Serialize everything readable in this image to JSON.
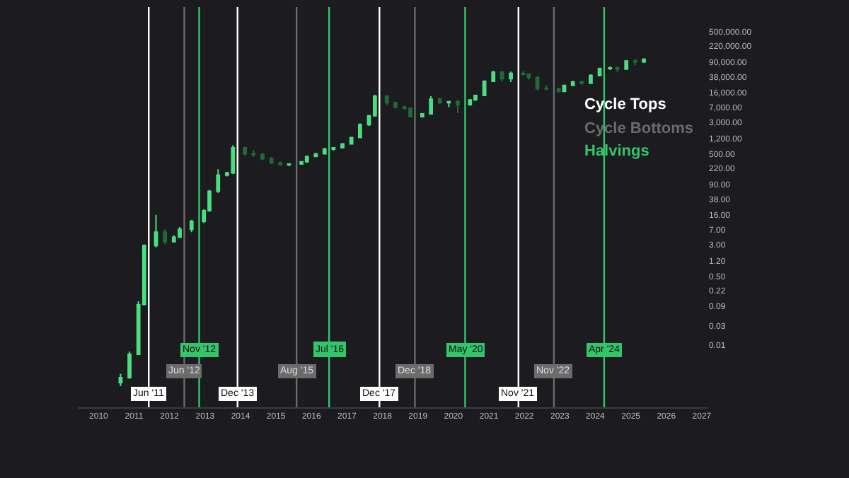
{
  "chart_data": {
    "type": "candlestick",
    "log": true,
    "grid": false,
    "x": [
      "2010-08-15",
      "2010-11-15",
      "2011-02-15",
      "2011-04-15",
      "2011-08-15",
      "2011-11-15",
      "2012-02-15",
      "2012-04-15",
      "2012-08-15",
      "2012-12-20",
      "2013-02-15",
      "2013-05-15",
      "2013-08-15",
      "2013-10-15",
      "2014-02-15",
      "2014-05-15",
      "2014-08-15",
      "2014-11-15",
      "2015-02-15",
      "2015-05-15",
      "2015-09-20",
      "2015-11-15",
      "2016-02-15",
      "2016-05-15",
      "2016-08-15",
      "2016-11-15",
      "2017-02-15",
      "2017-05-15",
      "2017-08-15",
      "2017-10-15",
      "2018-02-15",
      "2018-05-15",
      "2018-08-15",
      "2018-10-15",
      "2019-02-15",
      "2019-05-15",
      "2019-08-15",
      "2019-11-15",
      "2020-02-15",
      "2020-06-20",
      "2020-08-15",
      "2020-11-15",
      "2021-02-15",
      "2021-05-15",
      "2021-08-15",
      "2021-12-20",
      "2022-02-15",
      "2022-05-15",
      "2022-08-15",
      "2022-12-20",
      "2023-02-15",
      "2023-05-15",
      "2023-08-15",
      "2023-11-15",
      "2024-02-15",
      "2024-06-01",
      "2024-08-15",
      "2024-11-15",
      "2025-02-15",
      "2025-05-15"
    ],
    "ohlc": [
      [
        0.0012,
        0.002,
        0.001,
        0.0016
      ],
      [
        0.0016,
        0.007,
        0.0015,
        0.006
      ],
      [
        0.006,
        0.12,
        0.006,
        0.1
      ],
      [
        0.1,
        3,
        0.1,
        2.8
      ],
      [
        2.8,
        16,
        2.5,
        6
      ],
      [
        6,
        7,
        3,
        3.5
      ],
      [
        3.5,
        5,
        3.3,
        4.5
      ],
      [
        4.5,
        8,
        4.3,
        7
      ],
      [
        7,
        12,
        6,
        11
      ],
      [
        11,
        22,
        10,
        20
      ],
      [
        20,
        65,
        19,
        60
      ],
      [
        60,
        210,
        55,
        150
      ],
      [
        150,
        180,
        140,
        170
      ],
      [
        170,
        820,
        160,
        700
      ],
      [
        700,
        750,
        450,
        500
      ],
      [
        500,
        620,
        420,
        480
      ],
      [
        480,
        520,
        350,
        380
      ],
      [
        380,
        420,
        280,
        300
      ],
      [
        300,
        320,
        260,
        270
      ],
      [
        270,
        290,
        250,
        280
      ],
      [
        280,
        330,
        270,
        320
      ],
      [
        320,
        450,
        300,
        430
      ],
      [
        430,
        520,
        420,
        500
      ],
      [
        500,
        700,
        480,
        650
      ],
      [
        650,
        720,
        600,
        700
      ],
      [
        700,
        900,
        690,
        880
      ],
      [
        880,
        1300,
        850,
        1250
      ],
      [
        1250,
        2800,
        1200,
        2600
      ],
      [
        2600,
        4500,
        2400,
        4300
      ],
      [
        4300,
        14000,
        4200,
        13000
      ],
      [
        13000,
        13500,
        8000,
        9000
      ],
      [
        9000,
        9500,
        6500,
        7000
      ],
      [
        7000,
        7500,
        6000,
        6500
      ],
      [
        6500,
        6700,
        4000,
        4100
      ],
      [
        4100,
        5000,
        3900,
        4800
      ],
      [
        4800,
        13000,
        4700,
        11000
      ],
      [
        11000,
        12000,
        8500,
        9000
      ],
      [
        9000,
        10000,
        7000,
        9500
      ],
      [
        9500,
        10500,
        5000,
        8000
      ],
      [
        8000,
        11000,
        7800,
        10500
      ],
      [
        10500,
        14000,
        10000,
        13500
      ],
      [
        13500,
        32000,
        13000,
        30000
      ],
      [
        30000,
        55000,
        29000,
        50000
      ],
      [
        50000,
        54000,
        30000,
        35000
      ],
      [
        35000,
        52000,
        29000,
        47000
      ],
      [
        47000,
        53000,
        42000,
        45000
      ],
      [
        45000,
        46000,
        33000,
        38000
      ],
      [
        38000,
        40000,
        18000,
        20000
      ],
      [
        20000,
        24000,
        18500,
        19500
      ],
      [
        19500,
        21000,
        16000,
        17000
      ],
      [
        17000,
        25000,
        16500,
        24000
      ],
      [
        24000,
        31000,
        23000,
        29000
      ],
      [
        29000,
        31000,
        25000,
        27000
      ],
      [
        27000,
        45000,
        26000,
        42000
      ],
      [
        42000,
        65000,
        40000,
        62000
      ],
      [
        62000,
        70000,
        57000,
        64000
      ],
      [
        64000,
        70000,
        50000,
        60000
      ],
      [
        60000,
        100000,
        58000,
        95000
      ],
      [
        95000,
        105000,
        75000,
        90000
      ],
      [
        90000,
        110000,
        85000,
        105000
      ]
    ],
    "colors": [
      "#4ade80",
      "#4ade80",
      "#4ade80",
      "#4ade80",
      "#4ade80",
      "#1e6b35",
      "#4ade80",
      "#4ade80",
      "#4ade80",
      "#4ade80",
      "#4ade80",
      "#4ade80",
      "#4ade80",
      "#4ade80",
      "#1e6b35",
      "#1e6b35",
      "#1e6b35",
      "#1e6b35",
      "#1e6b35",
      "#4ade80",
      "#4ade80",
      "#4ade80",
      "#4ade80",
      "#4ade80",
      "#4ade80",
      "#4ade80",
      "#4ade80",
      "#4ade80",
      "#4ade80",
      "#4ade80",
      "#1e6b35",
      "#1e6b35",
      "#1e6b35",
      "#1e6b35",
      "#4ade80",
      "#4ade80",
      "#1e6b35",
      "#4ade80",
      "#1e6b35",
      "#4ade80",
      "#4ade80",
      "#4ade80",
      "#4ade80",
      "#1e6b35",
      "#4ade80",
      "#1e6b35",
      "#1e6b35",
      "#1e6b35",
      "#1e6b35",
      "#1e6b35",
      "#4ade80",
      "#4ade80",
      "#1e6b35",
      "#4ade80",
      "#4ade80",
      "#4ade80",
      "#1e6b35",
      "#4ade80",
      "#1e6b35",
      "#4ade80"
    ],
    "xlim": [
      "2009-06",
      "2027-03"
    ],
    "xticks": [
      {
        "value": "2010",
        "label": "2010"
      },
      {
        "value": "2011",
        "label": "2011"
      },
      {
        "value": "2012",
        "label": "2012"
      },
      {
        "value": "2013",
        "label": "2013"
      },
      {
        "value": "2014",
        "label": "2014"
      },
      {
        "value": "2015",
        "label": "2015"
      },
      {
        "value": "2016",
        "label": "2016"
      },
      {
        "value": "2017",
        "label": "2017"
      },
      {
        "value": "2018",
        "label": "2018"
      },
      {
        "value": "2019",
        "label": "2019"
      },
      {
        "value": "2020",
        "label": "2020"
      },
      {
        "value": "2021",
        "label": "2021"
      },
      {
        "value": "2022",
        "label": "2022"
      },
      {
        "value": "2023",
        "label": "2023"
      },
      {
        "value": "2024",
        "label": "2024"
      },
      {
        "value": "2025",
        "label": "2025"
      },
      {
        "value": "2026",
        "label": "2026"
      },
      {
        "value": "2027",
        "label": "2027"
      }
    ],
    "ylim": [
      0.0003,
      2000000
    ],
    "yticks": [
      {
        "value": 500000,
        "label": "500,000.00"
      },
      {
        "value": 220000,
        "label": "220,000.00"
      },
      {
        "value": 90000,
        "label": "90,000.00"
      },
      {
        "value": 38000,
        "label": "38,000.00"
      },
      {
        "value": 16000,
        "label": "16,000.00"
      },
      {
        "value": 7000,
        "label": "7,000.00"
      },
      {
        "value": 3000,
        "label": "3,000.00"
      },
      {
        "value": 1200,
        "label": "1,200.00"
      },
      {
        "value": 500,
        "label": "500.00"
      },
      {
        "value": 220,
        "label": "220.00"
      },
      {
        "value": 90,
        "label": "90.00"
      },
      {
        "value": 38,
        "label": "38.00"
      },
      {
        "value": 16,
        "label": "16.00"
      },
      {
        "value": 7,
        "label": "7.00"
      },
      {
        "value": 3,
        "label": "3.00"
      },
      {
        "value": 1.2,
        "label": "1.20"
      },
      {
        "value": 0.5,
        "label": "0.50"
      },
      {
        "value": 0.22,
        "label": "0.22"
      },
      {
        "value": 0.09,
        "label": "0.09"
      },
      {
        "value": 0.03,
        "label": "0.03"
      },
      {
        "value": 0.01,
        "label": "0.01"
      }
    ],
    "ref_lines": [
      {
        "axis": "x",
        "value": "2011-06",
        "label": "Jun '11",
        "color": "#ffffff"
      },
      {
        "axis": "x",
        "value": "2012-06",
        "label": "Jun '12",
        "color": "#6b6b6b"
      },
      {
        "axis": "x",
        "value": "2012-11",
        "label": "Nov '12",
        "color": "#34c46a"
      },
      {
        "axis": "x",
        "value": "2013-12",
        "label": "Dec '13",
        "color": "#ffffff"
      },
      {
        "axis": "x",
        "value": "2015-08",
        "label": "Aug '15",
        "color": "#6b6b6b"
      },
      {
        "axis": "x",
        "value": "2016-07",
        "label": "Jul '16",
        "color": "#34c46a"
      },
      {
        "axis": "x",
        "value": "2017-12",
        "label": "Dec '17",
        "color": "#ffffff"
      },
      {
        "axis": "x",
        "value": "2018-12",
        "label": "Dec '18",
        "color": "#6b6b6b"
      },
      {
        "axis": "x",
        "value": "2020-05",
        "label": "May '20",
        "color": "#34c46a"
      },
      {
        "axis": "x",
        "value": "2021-11",
        "label": "Nov '21",
        "color": "#ffffff"
      },
      {
        "axis": "x",
        "value": "2022-11",
        "label": "Nov '22",
        "color": "#6b6b6b"
      },
      {
        "axis": "x",
        "value": "2024-04",
        "label": "Apr '24",
        "color": "#34c46a"
      }
    ],
    "annotations": [
      "Cycle Tops",
      "Cycle Bottoms",
      "Halvings"
    ]
  }
}
